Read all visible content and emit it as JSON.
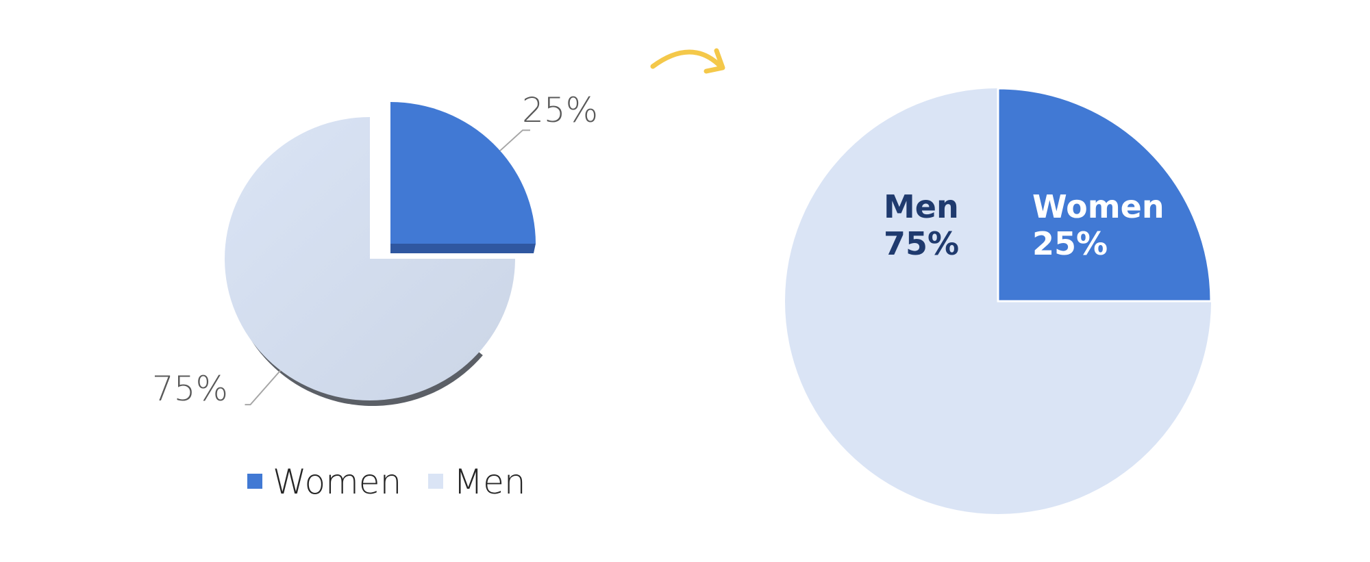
{
  "colors": {
    "women": "#4179d4",
    "women_dark": "#2f57a0",
    "men": "#dae4f5",
    "men_shade": "#cbd5e6",
    "men_text": "#1f3a6e",
    "shadow": "#5b5f66",
    "leader": "#a6a6a6",
    "arrow": "#f4c84a"
  },
  "chart_data": [
    {
      "type": "pie",
      "title": "",
      "style": "3d-exploded",
      "categories": [
        "Women",
        "Men"
      ],
      "values": [
        25,
        75
      ],
      "data_labels": [
        "25%",
        "75%"
      ],
      "legend": {
        "placement": "bottom",
        "entries": [
          "Women",
          "Men"
        ]
      }
    },
    {
      "type": "pie",
      "title": "",
      "style": "flat",
      "categories": [
        "Women",
        "Men"
      ],
      "values": [
        25,
        75
      ],
      "data_labels": [
        {
          "name": "Women",
          "value": "25%"
        },
        {
          "name": "Men",
          "value": "75%"
        }
      ]
    }
  ]
}
